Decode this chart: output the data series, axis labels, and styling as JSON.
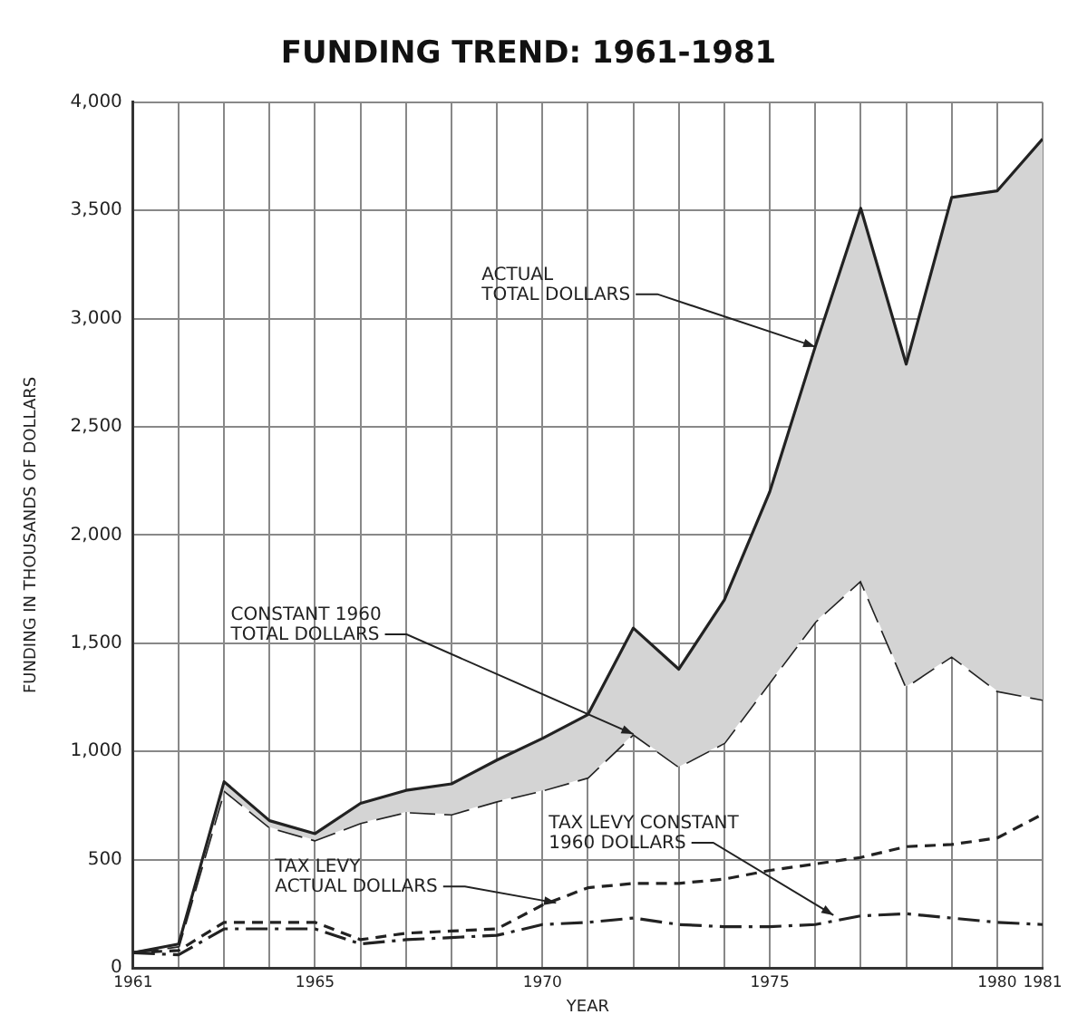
{
  "chart_data": {
    "type": "line",
    "title": "FUNDING TREND: 1961-1981",
    "xlabel": "YEAR",
    "ylabel": "FUNDING IN THOUSANDS OF DOLLARS",
    "x": [
      1961,
      1962,
      1963,
      1964,
      1965,
      1966,
      1967,
      1968,
      1969,
      1970,
      1971,
      1972,
      1973,
      1974,
      1975,
      1976,
      1977,
      1978,
      1979,
      1980,
      1981
    ],
    "series": [
      {
        "type": "area",
        "color": "#d4d4d4",
        "line_style": "solid",
        "values": [
          70,
          110,
          860,
          680,
          620,
          760,
          820,
          850,
          960,
          1060,
          1170,
          1570,
          1380,
          1700,
          2200,
          2870,
          3510,
          2790,
          3560,
          3590,
          3830
        ]
      },
      {
        "color": "#222222",
        "line_style": "long-dashed",
        "values": [
          70,
          100,
          820,
          650,
          590,
          670,
          720,
          710,
          770,
          820,
          880,
          1080,
          930,
          1040,
          1320,
          1600,
          1790,
          1300,
          1440,
          1280,
          1240
        ]
      },
      {
        "color": "#222222",
        "line_style": "dashed",
        "values": [
          70,
          80,
          210,
          210,
          210,
          130,
          160,
          170,
          180,
          290,
          370,
          390,
          390,
          410,
          450,
          480,
          510,
          560,
          570,
          600,
          710
        ]
      },
      {
        "color": "#222222",
        "line_style": "dash-dot",
        "values": [
          70,
          60,
          180,
          180,
          180,
          110,
          130,
          140,
          150,
          200,
          210,
          230,
          200,
          190,
          190,
          200,
          240,
          250,
          230,
          210,
          200
        ]
      }
    ],
    "xlim": [
      1961,
      1981
    ],
    "xticks": [
      1961,
      {
        "value": 1962,
        "label": null
      },
      {
        "value": 1963,
        "label": null
      },
      {
        "value": 1964,
        "label": null
      },
      1965,
      {
        "value": 1966,
        "label": null
      },
      {
        "value": 1967,
        "label": null
      },
      {
        "value": 1968,
        "label": null
      },
      {
        "value": 1969,
        "label": null
      },
      1970,
      {
        "value": 1971,
        "label": null
      },
      {
        "value": 1972,
        "label": null
      },
      {
        "value": 1973,
        "label": null
      },
      {
        "value": 1974,
        "label": null
      },
      1975,
      {
        "value": 1976,
        "label": null
      },
      {
        "value": 1977,
        "label": null
      },
      {
        "value": 1978,
        "label": null
      },
      {
        "value": 1979,
        "label": null
      },
      1980,
      1981
    ],
    "ylim": [
      0,
      4000
    ],
    "yticks": [
      0,
      500,
      {
        "value": 1000,
        "label": "1,000"
      },
      {
        "value": 1500,
        "label": "1,500"
      },
      {
        "value": 2000,
        "label": "2,000"
      },
      {
        "value": 2500,
        "label": "2,500"
      },
      {
        "value": 3000,
        "label": "3,000"
      },
      {
        "value": 3500,
        "label": "3,500"
      },
      {
        "value": 4000,
        "label": "4,000"
      }
    ],
    "grid": true,
    "legend": false,
    "marker": "none",
    "annotations": [
      {
        "text": "ACTUAL\nTOTAL DOLLARS",
        "x": 1976,
        "y": 2870
      },
      {
        "text": "CONSTANT 1960\nTOTAL DOLLARS",
        "x": 1972,
        "y": 1080
      },
      {
        "text": "TAX LEVY\nACTUAL DOLLARS",
        "x": 1970.3,
        "y": 300
      },
      {
        "text": "TAX LEVY CONSTANT\n1960 DOLLARS",
        "x": 1976.4,
        "y": 243
      }
    ]
  }
}
